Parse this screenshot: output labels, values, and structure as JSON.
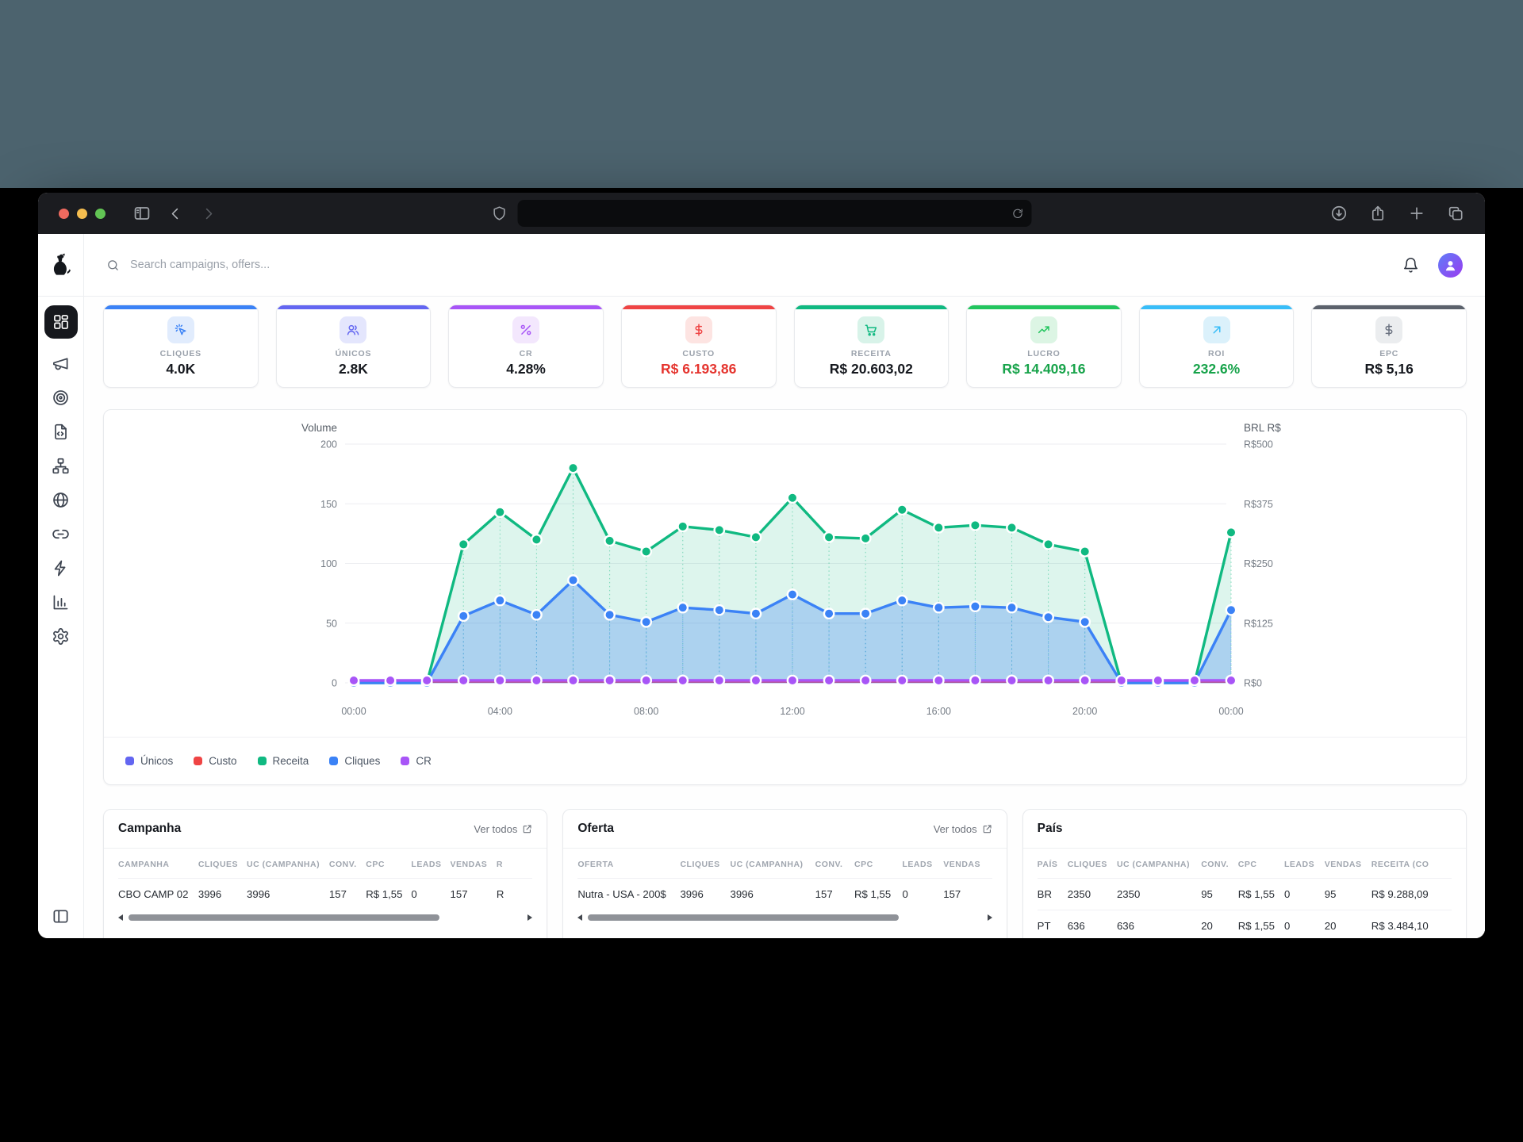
{
  "colors": {
    "traffic_lights": [
      "#ee6a5f",
      "#f5bd4f",
      "#62c454"
    ],
    "titlebar_bg": "#1b1c20",
    "desktop_bg": "#4c636e",
    "active_nav_bg": "#16181d",
    "avatar_gradient": [
      "#5f7df8",
      "#9a3bf0"
    ]
  },
  "browser": {
    "icons": [
      "sidebar-toggle-icon",
      "back-icon",
      "forward-icon",
      "shield-icon",
      "refresh-icon",
      "download-icon",
      "share-icon",
      "new-tab-icon",
      "tabs-icon"
    ],
    "url_text": ""
  },
  "app": {
    "logo": "dog-logo",
    "search": {
      "placeholder": "Search campaigns, offers..."
    },
    "header_icons": [
      "bell-icon",
      "user-avatar"
    ]
  },
  "sidebar": {
    "items": [
      {
        "name": "dashboard",
        "icon": "dashboard",
        "active": true
      },
      {
        "name": "campaigns",
        "icon": "megaphone",
        "active": false
      },
      {
        "name": "offers",
        "icon": "target",
        "active": false
      },
      {
        "name": "landing-pages",
        "icon": "file-code",
        "active": false
      },
      {
        "name": "flows",
        "icon": "sitemap",
        "active": false
      },
      {
        "name": "domains",
        "icon": "globe",
        "active": false
      },
      {
        "name": "links",
        "icon": "link",
        "active": false
      },
      {
        "name": "automation",
        "icon": "zap",
        "active": false
      },
      {
        "name": "reports",
        "icon": "bar-chart",
        "active": false
      },
      {
        "name": "settings",
        "icon": "settings",
        "active": false
      }
    ],
    "bottom_icon": "panel-left"
  },
  "stats": [
    {
      "label": "CLIQUES",
      "value": "4.0K",
      "accent": "#3b82f6",
      "icon": "cursor-click",
      "chip_bg": "#e1ecfd",
      "icon_color": "#3b82f6",
      "value_color": "#15181e"
    },
    {
      "label": "ÚNICOS",
      "value": "2.8K",
      "accent": "#6366f1",
      "icon": "users",
      "chip_bg": "#e4e6fd",
      "icon_color": "#6366f1",
      "value_color": "#15181e"
    },
    {
      "label": "CR",
      "value": "4.28%",
      "accent": "#a855f7",
      "icon": "percent",
      "chip_bg": "#f3e7fd",
      "icon_color": "#a855f7",
      "value_color": "#15181e"
    },
    {
      "label": "CUSTO",
      "value": "R$ 6.193,86",
      "accent": "#ef4444",
      "icon": "dollar",
      "chip_bg": "#fde4e2",
      "icon_color": "#ef4444",
      "value_color": "#e5342e"
    },
    {
      "label": "RECEITA",
      "value": "R$ 20.603,02",
      "accent": "#10b981",
      "icon": "cart",
      "chip_bg": "#d8f3e9",
      "icon_color": "#10b981",
      "value_color": "#15181e"
    },
    {
      "label": "LUCRO",
      "value": "R$ 14.409,16",
      "accent": "#22c55e",
      "icon": "trending-up",
      "chip_bg": "#dcf5e4",
      "icon_color": "#22c55e",
      "value_color": "#17a34a"
    },
    {
      "label": "ROI",
      "value": "232.6%",
      "accent": "#38bdf8",
      "icon": "arrow-up-right",
      "chip_bg": "#dbf1fb",
      "icon_color": "#38bdf8",
      "value_color": "#17a34a"
    },
    {
      "label": "EPC",
      "value": "R$ 5,16",
      "accent": "#5b616b",
      "icon": "dollar",
      "chip_bg": "#ebedef",
      "icon_color": "#6b7280",
      "value_color": "#15181e"
    }
  ],
  "chart_data": {
    "type": "area",
    "left_axis": {
      "title": "Volume",
      "ticks": [
        200,
        150,
        100,
        50,
        0
      ],
      "range": [
        0,
        200
      ]
    },
    "right_axis": {
      "title": "BRL R$",
      "ticks": [
        "R$500",
        "R$375",
        "R$250",
        "R$125",
        "R$0"
      ],
      "range": [
        0,
        500
      ]
    },
    "x_ticks": [
      "00:00",
      "04:00",
      "08:00",
      "12:00",
      "16:00",
      "20:00",
      "00:00"
    ],
    "x_tick_indices": [
      0,
      4,
      8,
      12,
      16,
      20,
      24
    ],
    "grid": true,
    "legend_position": "bottom-left",
    "series": [
      {
        "name": "Receita",
        "color": "#10b981",
        "fill": "rgba(16,185,129,0.14)",
        "dots": true,
        "values": [
          0,
          0,
          0,
          116,
          143,
          120,
          180,
          119,
          110,
          131,
          128,
          122,
          155,
          122,
          121,
          145,
          130,
          132,
          130,
          116,
          110,
          0,
          0,
          0,
          126
        ]
      },
      {
        "name": "Cliques",
        "color": "#3b82f6",
        "fill": "rgba(59,130,246,0.30)",
        "dots": true,
        "values": [
          0,
          0,
          0,
          56,
          69,
          57,
          86,
          57,
          51,
          63,
          61,
          58,
          74,
          58,
          58,
          69,
          63,
          64,
          63,
          55,
          51,
          0,
          0,
          0,
          61
        ]
      },
      {
        "name": "Únicos",
        "color": "#6366f1",
        "flat": 0.6,
        "dots": false
      },
      {
        "name": "Custo",
        "color": "#ef4444",
        "flat": 1.1,
        "dots": false
      },
      {
        "name": "CR",
        "color": "#a855f7",
        "flat": 2.0,
        "dots": true
      }
    ],
    "legend": [
      {
        "label": "Únicos",
        "color": "#6366f1"
      },
      {
        "label": "Custo",
        "color": "#ef4444"
      },
      {
        "label": "Receita",
        "color": "#10b981"
      },
      {
        "label": "Cliques",
        "color": "#3b82f6"
      },
      {
        "label": "CR",
        "color": "#a855f7"
      }
    ]
  },
  "tables": [
    {
      "title": "Campanha",
      "link": "Ver todos",
      "columns": [
        "CAMPANHA",
        "CLIQUES",
        "UC (CAMPANHA)",
        "CONV.",
        "CPC",
        "LEADS",
        "VENDAS",
        "R"
      ],
      "rows": [
        [
          "CBO CAMP 02",
          "3996",
          "3996",
          "157",
          "R$ 1,55",
          "0",
          "157",
          "R"
        ]
      ],
      "scrollbar": true
    },
    {
      "title": "Oferta",
      "link": "Ver todos",
      "columns": [
        "OFERTA",
        "CLIQUES",
        "UC (CAMPANHA)",
        "CONV.",
        "CPC",
        "LEADS",
        "VENDAS"
      ],
      "rows": [
        [
          "Nutra - USA - 200$",
          "3996",
          "3996",
          "157",
          "R$ 1,55",
          "0",
          "157"
        ]
      ],
      "scrollbar": true
    },
    {
      "title": "País",
      "link": null,
      "columns": [
        "PAÍS",
        "CLIQUES",
        "UC (CAMPANHA)",
        "CONV.",
        "CPC",
        "LEADS",
        "VENDAS",
        "RECEITA (CO"
      ],
      "rows": [
        [
          "BR",
          "2350",
          "2350",
          "95",
          "R$ 1,55",
          "0",
          "95",
          "R$ 9.288,09"
        ],
        [
          "PT",
          "636",
          "636",
          "20",
          "R$ 1,55",
          "0",
          "20",
          "R$ 3.484,10"
        ]
      ],
      "scrollbar": false
    }
  ]
}
